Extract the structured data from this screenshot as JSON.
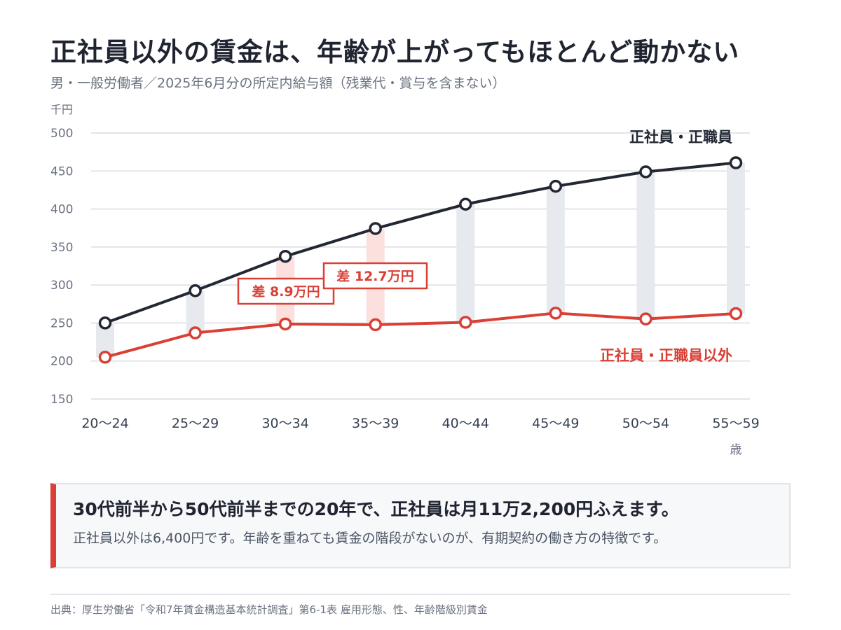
{
  "header": {
    "title": "正社員以外の賃金は、年齢が上がってもほとんど動かない",
    "subtitle": "男・一般労働者／2025年6月分の所定内給与額（残業代・賞与を含まない）"
  },
  "chart_data": {
    "type": "line",
    "y_unit": "千円",
    "x_unit": "歳",
    "ylim": [
      150,
      500
    ],
    "yticks": [
      150,
      200,
      250,
      300,
      350,
      400,
      450,
      500
    ],
    "grid": true,
    "categories": [
      "20～24",
      "25～29",
      "30～34",
      "35～39",
      "40～44",
      "45～49",
      "50～54",
      "55～59"
    ],
    "series": [
      {
        "name": "正社員・正職員",
        "color": "#222733",
        "values": [
          250.0,
          292.5,
          337.7,
          374.3,
          406.3,
          429.9,
          448.9,
          460.8
        ]
      },
      {
        "name": "正社員・正職員以外",
        "color": "#d93f35",
        "values": [
          205.0,
          237.0,
          248.7,
          247.7,
          250.9,
          263.0,
          255.3,
          262.4
        ]
      }
    ],
    "gap_annotations": [
      {
        "category_index": 2,
        "label": "差 8.9万円"
      },
      {
        "category_index": 3,
        "label": "差 12.7万円"
      }
    ],
    "colors": {
      "gap_bar": "#e6e9ee",
      "gap_bar_highlight": "#fbe0de",
      "grid": "#d9dce1",
      "axis_text": "#6b7280"
    }
  },
  "callout": {
    "headline": "30代前半から50代前半までの20年で、正社員は月11万2,200円ふえます。",
    "body": "正社員以外は6,400円です。年齢を重ねても賃金の階段がないのが、有期契約の働き方の特徴です。"
  },
  "footer": {
    "source": "出典：厚生労働省「令和7年賃金構造基本統計調査」第6-1表 雇用形態、性、年齢階級別賃金"
  }
}
